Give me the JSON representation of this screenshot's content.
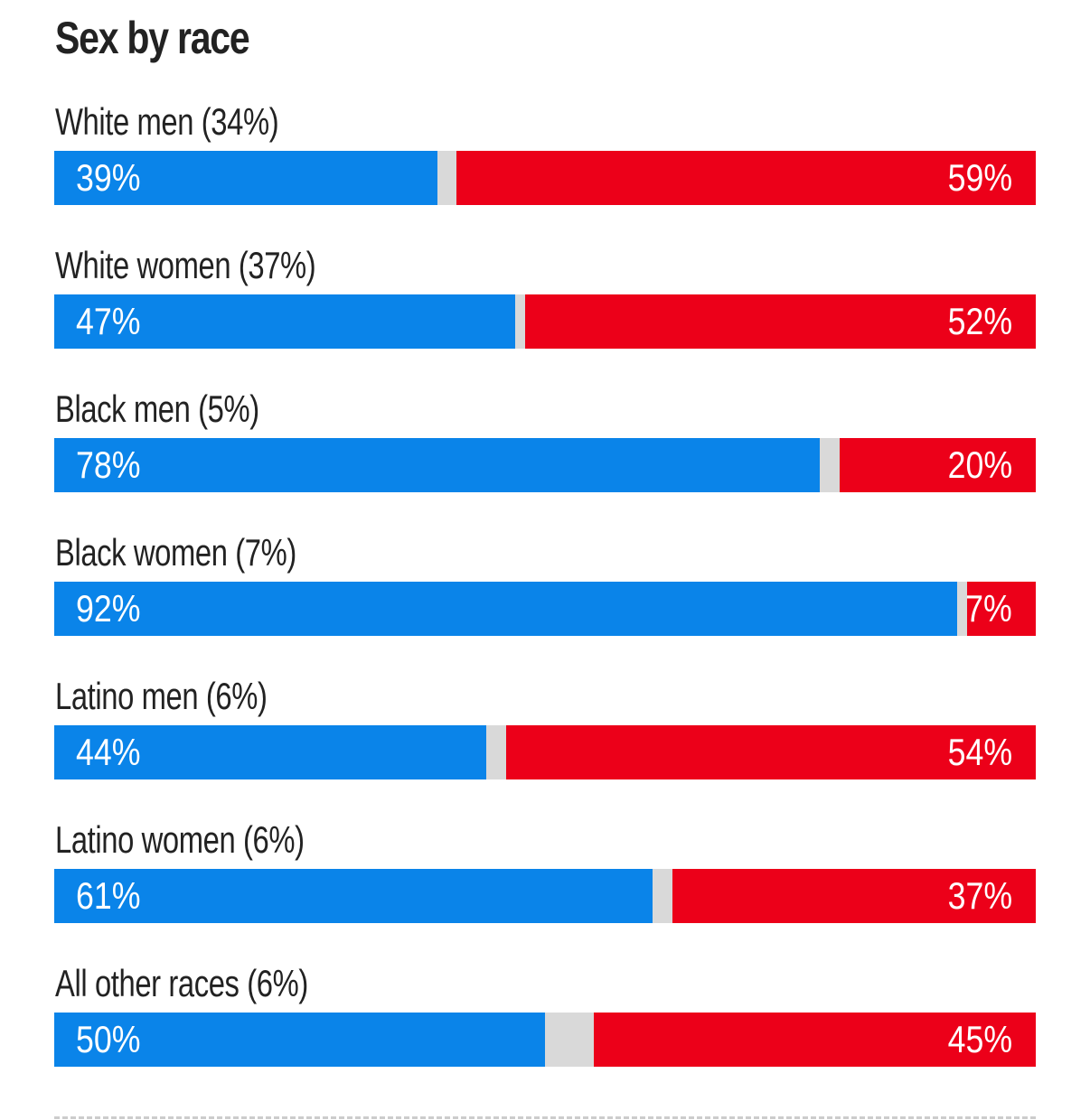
{
  "chart_data": {
    "type": "bar",
    "title": "Sex by race",
    "colors": {
      "dem": "#0a84e9",
      "rep": "#ec0019",
      "other": "#d9d9d9"
    },
    "groups": [
      {
        "label": "White men (34%)",
        "dem": 39,
        "rep": 59,
        "dem_label": "39%",
        "rep_label": "59%"
      },
      {
        "label": "White women (37%)",
        "dem": 47,
        "rep": 52,
        "dem_label": "47%",
        "rep_label": "52%"
      },
      {
        "label": "Black men (5%)",
        "dem": 78,
        "rep": 20,
        "dem_label": "78%",
        "rep_label": "20%"
      },
      {
        "label": "Black women (7%)",
        "dem": 92,
        "rep": 7,
        "dem_label": "92%",
        "rep_label": "7%"
      },
      {
        "label": "Latino men (6%)",
        "dem": 44,
        "rep": 54,
        "dem_label": "44%",
        "rep_label": "54%"
      },
      {
        "label": "Latino women (6%)",
        "dem": 61,
        "rep": 37,
        "dem_label": "61%",
        "rep_label": "37%"
      },
      {
        "label": "All other races (6%)",
        "dem": 50,
        "rep": 45,
        "dem_label": "50%",
        "rep_label": "45%"
      }
    ]
  }
}
